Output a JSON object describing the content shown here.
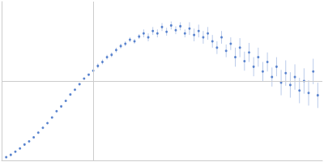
{
  "chart_data": {
    "type": "scatter",
    "color": "#3a6bc4",
    "marker": "circle",
    "grid": true,
    "tick_labels": false,
    "xlim": [
      0,
      0.35
    ],
    "ylim": [
      0,
      2
    ],
    "xticks": [
      0.1
    ],
    "yticks": [
      1
    ],
    "x": [
      0.005,
      0.01,
      0.015,
      0.02,
      0.025,
      0.03,
      0.035,
      0.04,
      0.045,
      0.05,
      0.055,
      0.06,
      0.065,
      0.07,
      0.075,
      0.08,
      0.085,
      0.09,
      0.095,
      0.1,
      0.105,
      0.11,
      0.115,
      0.12,
      0.125,
      0.13,
      0.135,
      0.14,
      0.145,
      0.15,
      0.155,
      0.16,
      0.165,
      0.17,
      0.175,
      0.18,
      0.185,
      0.19,
      0.195,
      0.2,
      0.205,
      0.21,
      0.215,
      0.22,
      0.225,
      0.23,
      0.235,
      0.24,
      0.245,
      0.25,
      0.255,
      0.26,
      0.265,
      0.27,
      0.275,
      0.28,
      0.285,
      0.29,
      0.295,
      0.3,
      0.305,
      0.31,
      0.315,
      0.32,
      0.325,
      0.33,
      0.335,
      0.34,
      0.345
    ],
    "values": [
      0.04,
      0.07,
      0.11,
      0.15,
      0.2,
      0.24,
      0.29,
      0.35,
      0.41,
      0.47,
      0.54,
      0.62,
      0.68,
      0.75,
      0.83,
      0.89,
      0.96,
      1.03,
      1.08,
      1.13,
      1.19,
      1.24,
      1.3,
      1.33,
      1.39,
      1.44,
      1.47,
      1.52,
      1.5,
      1.56,
      1.6,
      1.55,
      1.63,
      1.6,
      1.68,
      1.62,
      1.7,
      1.64,
      1.69,
      1.6,
      1.66,
      1.58,
      1.63,
      1.55,
      1.6,
      1.5,
      1.42,
      1.55,
      1.38,
      1.47,
      1.3,
      1.42,
      1.25,
      1.36,
      1.18,
      1.3,
      1.12,
      1.24,
      1.05,
      1.18,
      0.98,
      1.1,
      0.95,
      1.05,
      0.88,
      1.0,
      0.85,
      1.12,
      0.82
    ],
    "errors": [
      0.01,
      0.01,
      0.01,
      0.01,
      0.01,
      0.01,
      0.01,
      0.01,
      0.01,
      0.01,
      0.01,
      0.01,
      0.01,
      0.01,
      0.01,
      0.01,
      0.01,
      0.01,
      0.01,
      0.01,
      0.03,
      0.03,
      0.03,
      0.03,
      0.03,
      0.03,
      0.03,
      0.03,
      0.03,
      0.03,
      0.05,
      0.05,
      0.05,
      0.05,
      0.05,
      0.05,
      0.05,
      0.05,
      0.05,
      0.05,
      0.08,
      0.08,
      0.08,
      0.08,
      0.08,
      0.08,
      0.08,
      0.08,
      0.08,
      0.08,
      0.12,
      0.12,
      0.12,
      0.12,
      0.12,
      0.12,
      0.12,
      0.12,
      0.12,
      0.12,
      0.16,
      0.16,
      0.16,
      0.16,
      0.16,
      0.16,
      0.16,
      0.16,
      0.16
    ]
  }
}
